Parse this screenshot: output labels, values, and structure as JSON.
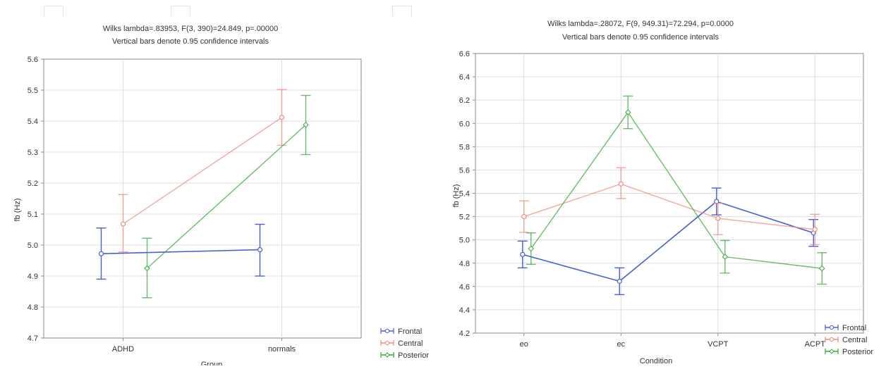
{
  "chart_data": [
    {
      "type": "line",
      "title": "Wilks lambda=.83953, F(3, 390)=24.849, p=.00000",
      "subtitle": "Vertical bars denote 0.95 confidence intervals",
      "xlabel": "Group",
      "ylabel": "fb (Hz)",
      "categories": [
        "ADHD",
        "normals"
      ],
      "ylim": [
        4.7,
        5.6
      ],
      "yticks": [
        "4.7",
        "4.8",
        "4.9",
        "5.0",
        "5.1",
        "5.2",
        "5.3",
        "5.4",
        "5.5",
        "5.6"
      ],
      "grid": true,
      "legend_position": "bottom-right",
      "series": [
        {
          "name": "Frontal",
          "color": "#4a5fd0",
          "values": [
            4.972,
            4.985
          ],
          "ci_low": [
            4.89,
            4.9
          ],
          "ci_high": [
            5.055,
            5.067
          ]
        },
        {
          "name": "Central",
          "color": "#f08a82",
          "values": [
            5.068,
            5.412
          ],
          "ci_low": [
            4.978,
            5.322
          ],
          "ci_high": [
            5.163,
            5.502
          ]
        },
        {
          "name": "Posterior",
          "color": "#3aa53a",
          "values": [
            4.925,
            5.388
          ],
          "ci_low": [
            4.83,
            5.292
          ],
          "ci_high": [
            5.022,
            5.483
          ]
        }
      ]
    },
    {
      "type": "line",
      "title": "Wilks lambda=.28072, F(9, 949.31)=72.294, p=0.0000",
      "subtitle": "Vertical bars denote 0.95 confidence intervals",
      "xlabel": "Condition",
      "ylabel": "fb (Hz)",
      "categories": [
        "eo",
        "ec",
        "VCPT",
        "ACPT"
      ],
      "ylim": [
        4.2,
        6.6
      ],
      "yticks": [
        "4.2",
        "4.4",
        "4.6",
        "4.8",
        "5.0",
        "5.2",
        "5.4",
        "5.6",
        "5.8",
        "6.0",
        "6.2",
        "6.4",
        "6.6"
      ],
      "grid": true,
      "legend_position": "bottom-right",
      "series": [
        {
          "name": "Frontal",
          "color": "#4a5fd0",
          "values": [
            4.875,
            4.645,
            5.33,
            5.06
          ],
          "ci_low": [
            4.76,
            4.53,
            5.215,
            4.945
          ],
          "ci_high": [
            4.99,
            4.76,
            5.445,
            5.175
          ]
        },
        {
          "name": "Central",
          "color": "#f08a82",
          "values": [
            5.2,
            5.48,
            5.185,
            5.09
          ],
          "ci_low": [
            5.065,
            5.355,
            5.045,
            4.96
          ],
          "ci_high": [
            5.335,
            5.62,
            5.315,
            5.22
          ]
        },
        {
          "name": "Posterior",
          "color": "#3aa53a",
          "values": [
            4.925,
            6.095,
            4.855,
            4.755
          ],
          "ci_low": [
            4.79,
            5.955,
            4.715,
            4.62
          ],
          "ci_high": [
            5.06,
            6.235,
            4.995,
            4.89
          ]
        }
      ]
    }
  ]
}
